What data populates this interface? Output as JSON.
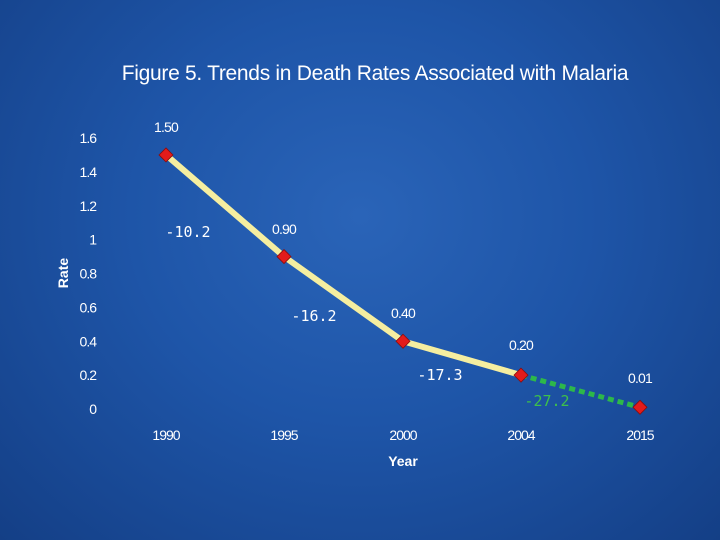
{
  "title": "Figure 5.  Trends in Death Rates Associated with Malaria",
  "chart_data": {
    "type": "line",
    "title": "Figure 5.  Trends in Death Rates Associated with Malaria",
    "xlabel": "Year",
    "ylabel": "Rate",
    "x": [
      "1990",
      "1995",
      "2000",
      "2004",
      "2015"
    ],
    "series": [
      {
        "values": [
          1.5,
          0.9,
          0.4,
          0.2,
          0.01
        ],
        "data_labels": [
          "1.50",
          "0.90",
          "0.40",
          "0.20",
          "0.01"
        ]
      }
    ],
    "ylim": [
      0,
      1.6
    ],
    "yticks": [
      "0",
      "0.2",
      "0.4",
      "0.6",
      "0.8",
      "1",
      "1.2",
      "1.4",
      "1.6"
    ],
    "segment_colors": [
      "#f5eea0",
      "#f5eea0",
      "#f5eea0",
      "#2db84a"
    ],
    "segment_styles": [
      "solid",
      "solid",
      "solid",
      "dotted"
    ],
    "segment_annotations": [
      "-10.2",
      "-16.2",
      "-17.3",
      "-27.2"
    ],
    "annotation_colors": [
      "#ffffff",
      "#ffffff",
      "#ffffff",
      "#3ec04a"
    ],
    "marker": "diamond",
    "marker_color": "#e31b1b",
    "grid": false,
    "legend": "none"
  }
}
